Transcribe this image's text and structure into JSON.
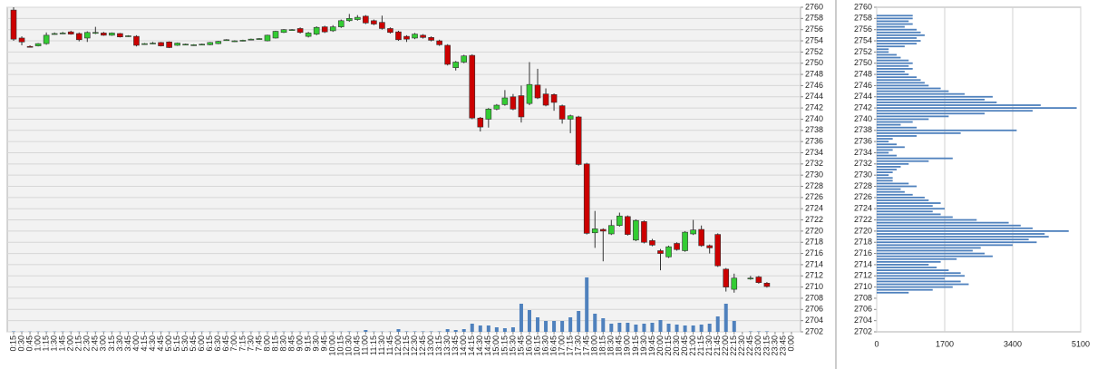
{
  "chart_data": [
    {
      "type": "candlestick",
      "categories": [
        "0:15",
        "0:30",
        "0:45",
        "1:00",
        "1:15",
        "1:30",
        "1:45",
        "2:00",
        "2:15",
        "2:30",
        "2:45",
        "3:00",
        "3:15",
        "3:30",
        "3:45",
        "4:00",
        "4:15",
        "4:30",
        "4:45",
        "5:00",
        "5:15",
        "5:30",
        "5:45",
        "6:00",
        "6:15",
        "6:30",
        "6:45",
        "7:00",
        "7:15",
        "7:30",
        "7:45",
        "8:00",
        "8:15",
        "8:30",
        "8:45",
        "9:00",
        "9:15",
        "9:30",
        "9:45",
        "10:00",
        "10:15",
        "10:30",
        "10:45",
        "11:00",
        "11:15",
        "11:30",
        "11:45",
        "12:00",
        "12:15",
        "12:30",
        "12:45",
        "13:00",
        "13:15",
        "13:30",
        "13:45",
        "14:00",
        "14:15",
        "14:30",
        "14:45",
        "15:00",
        "15:15",
        "15:30",
        "15:45",
        "16:00",
        "16:15",
        "16:30",
        "16:45",
        "17:00",
        "17:15",
        "17:30",
        "17:45",
        "18:00",
        "18:15",
        "18:30",
        "18:45",
        "19:00",
        "19:15",
        "19:30",
        "19:45",
        "20:00",
        "20:15",
        "20:30",
        "20:45",
        "21:00",
        "21:15",
        "21:30",
        "21:45",
        "22:00",
        "22:15",
        "22:30",
        "22:45",
        "23:00",
        "23:15",
        "23:30",
        "23:45",
        "0:00"
      ],
      "open": [
        2759.5,
        2754.5,
        2753,
        2753.1,
        2753.5,
        2755.2,
        2755.3,
        2755.6,
        2755.3,
        2754.5,
        2755.4,
        2755.4,
        2755,
        2755.3,
        2754.8,
        2754.8,
        2753.4,
        2753.5,
        2753.7,
        2753.8,
        2753.2,
        2753.3,
        2753.2,
        2753.3,
        2753.3,
        2753.5,
        2754.1,
        2753.9,
        2754,
        2754.2,
        2754.3,
        2754,
        2754.5,
        2755.5,
        2755.9,
        2756.2,
        2754.8,
        2755.2,
        2756.5,
        2755.8,
        2756.5,
        2757.6,
        2757.8,
        2758.4,
        2757.6,
        2757.3,
        2756.2,
        2755.6,
        2754.8,
        2754.5,
        2755,
        2754.6,
        2754,
        2753.2,
        2749.2,
        2750.2,
        2751.4,
        2740.2,
        2740,
        2741.8,
        2742.6,
        2744,
        2744.2,
        2742.8,
        2746.1,
        2744.5,
        2744.4,
        2742.4,
        2740,
        2740.4,
        2732,
        2719.7,
        2720.3,
        2719.5,
        2721,
        2722.6,
        2718.4,
        2721.7,
        2718.3,
        2716.5,
        2715.4,
        2717.8,
        2716.5,
        2719.5,
        2720.3,
        2717.4,
        2719.4,
        2713.2,
        2709.6,
        null,
        2711.5,
        2711.8,
        2710.7,
        null,
        null,
        null
      ],
      "high": [
        2760,
        2754.8,
        2753.2,
        2753.6,
        2755.5,
        2755.5,
        2755.6,
        2755.8,
        2755.5,
        2755.7,
        2756.5,
        2755.6,
        2755.5,
        2755.4,
        2755,
        2755,
        2753.6,
        2753.8,
        2753.8,
        2753.9,
        2753.7,
        2753.5,
        2753.4,
        2753.5,
        2753.8,
        2754,
        2754.3,
        2754.1,
        2754.2,
        2754.4,
        2754.5,
        2755.1,
        2755.8,
        2756.1,
        2756.1,
        2756.4,
        2755.6,
        2756.6,
        2756.7,
        2756.8,
        2757.8,
        2758.8,
        2758.6,
        2758.6,
        2757.8,
        2758.5,
        2756.4,
        2755.8,
        2755,
        2755.4,
        2755.2,
        2754.8,
        2754.2,
        2753.4,
        2750.4,
        2751.5,
        2751.6,
        2740.4,
        2742,
        2742.7,
        2745.2,
        2744.5,
        2746,
        2750.2,
        2749,
        2745.5,
        2744.6,
        2742.6,
        2740.8,
        2740.6,
        2732.2,
        2723.6,
        2720.5,
        2722,
        2723.3,
        2722.8,
        2722.1,
        2721.9,
        2718.6,
        2716.8,
        2717.4,
        2718,
        2720,
        2722,
        2721,
        2717.6,
        2719.6,
        2713.4,
        2712.4,
        null,
        2712,
        2712,
        2710.9,
        null,
        null,
        null
      ],
      "low": [
        2754,
        2753.2,
        2752.8,
        2753,
        2753.3,
        2755.1,
        2755.2,
        2755.1,
        2753.9,
        2753.8,
        2755.2,
        2754.9,
        2754.9,
        2754.6,
        2754.7,
        2753,
        2753.3,
        2753.4,
        2753,
        2752.7,
        2753.1,
        2753.2,
        2753.1,
        2753.2,
        2753.2,
        2753.4,
        2754,
        2753.8,
        2753.9,
        2754.1,
        2754.2,
        2753.9,
        2754.4,
        2755.4,
        2755.8,
        2755.3,
        2754.6,
        2755,
        2755.4,
        2755.6,
        2756.3,
        2757.4,
        2757.6,
        2757,
        2756.8,
        2756,
        2755.3,
        2754,
        2753.8,
        2754.3,
        2754.4,
        2753.9,
        2753.1,
        2749.6,
        2748.7,
        2750,
        2740,
        2737.8,
        2738.5,
        2741.6,
        2742.4,
        2741.6,
        2739.4,
        2742.5,
        2743.6,
        2742.3,
        2741.5,
        2739.2,
        2737.5,
        2731.7,
        2719.4,
        2717,
        2714.6,
        2719.3,
        2720.8,
        2719.2,
        2718.2,
        2717.8,
        2717.3,
        2713,
        2715.2,
        2716.5,
        2716.3,
        2719.3,
        2717.2,
        2716,
        2713.6,
        2709.2,
        2709,
        null,
        2711.3,
        2710.6,
        2709.9,
        null,
        null,
        null
      ],
      "close": [
        2754.3,
        2753.8,
        2753,
        2753.5,
        2755,
        2755.3,
        2755.4,
        2755.2,
        2754.2,
        2755.5,
        2755.5,
        2755,
        2755.4,
        2754.7,
        2754.9,
        2753.2,
        2753.5,
        2753.6,
        2753.1,
        2752.8,
        2753.6,
        2753.4,
        2753.3,
        2753.4,
        2753.7,
        2753.9,
        2754.2,
        2754,
        2754.1,
        2754.3,
        2754.4,
        2755,
        2755.7,
        2756,
        2756,
        2755.5,
        2755.4,
        2756.4,
        2755.6,
        2756.5,
        2757.6,
        2758,
        2758.2,
        2757.2,
        2757,
        2756.2,
        2755.5,
        2754.2,
        2754.3,
        2755.2,
        2754.6,
        2754.1,
        2753.3,
        2749.8,
        2750.2,
        2751.3,
        2740.2,
        2738.6,
        2741.8,
        2742.5,
        2743.8,
        2741.8,
        2740.4,
        2746.2,
        2743.8,
        2742.5,
        2743,
        2740,
        2740.6,
        2731.9,
        2719.6,
        2720.4,
        2720,
        2721,
        2722.7,
        2719.4,
        2721.9,
        2718,
        2717.5,
        2716,
        2717.2,
        2716.7,
        2719.8,
        2720.2,
        2717.4,
        2717,
        2713.8,
        2710,
        2711.6,
        null,
        2711.6,
        2710.8,
        2710.1,
        null,
        null,
        null
      ],
      "volume": [
        0.5,
        0.3,
        0.3,
        0.3,
        0.3,
        0.3,
        0.3,
        0.3,
        0.3,
        0.3,
        0.3,
        0.3,
        0.3,
        0.3,
        0.3,
        0.3,
        0.3,
        0.3,
        0.3,
        0.3,
        0.3,
        0.3,
        0.3,
        0.3,
        0.3,
        0.3,
        0.3,
        0.3,
        0.3,
        0.3,
        0.3,
        0.3,
        0.3,
        0.3,
        0.3,
        0.3,
        0.3,
        0.3,
        0.3,
        0.3,
        0.3,
        0.5,
        0.3,
        2,
        0.3,
        0.3,
        0.3,
        3,
        0.5,
        0.5,
        0.5,
        0.5,
        0.5,
        3,
        2,
        3,
        9,
        7,
        7,
        5,
        4,
        5,
        31,
        24,
        16,
        12,
        12,
        12,
        16,
        23,
        60,
        20,
        15,
        9,
        10,
        10,
        8,
        9,
        10,
        13,
        9,
        8,
        7,
        7,
        8,
        9,
        17,
        31,
        12,
        null,
        0.5,
        0.5,
        0.5,
        null,
        null,
        null
      ],
      "ylim": [
        2702,
        2760
      ],
      "yticks": [
        2702,
        2704,
        2706,
        2708,
        2710,
        2712,
        2714,
        2716,
        2718,
        2720,
        2722,
        2724,
        2726,
        2728,
        2730,
        2732,
        2734,
        2736,
        2738,
        2740,
        2742,
        2744,
        2746,
        2748,
        2750,
        2752,
        2754,
        2756,
        2758,
        2760
      ],
      "up_color": "#33cc33",
      "down_color": "#cc0000",
      "volume_color": "#4f81bd",
      "grid": true
    },
    {
      "type": "barh",
      "prices": [
        2758.5,
        2758,
        2757.5,
        2757,
        2756.5,
        2756,
        2755.5,
        2755,
        2754.5,
        2754,
        2753.5,
        2753,
        2752.5,
        2752,
        2751.5,
        2751,
        2750.5,
        2750,
        2749.5,
        2749,
        2748.5,
        2748,
        2747.5,
        2747,
        2746.5,
        2746,
        2745.5,
        2745,
        2744.5,
        2744,
        2743.5,
        2743,
        2742.5,
        2742,
        2741.5,
        2741,
        2740.5,
        2740,
        2739.5,
        2739,
        2738.5,
        2738,
        2737.5,
        2737,
        2736.5,
        2736,
        2735.5,
        2735,
        2734.5,
        2734,
        2733.5,
        2733,
        2732.5,
        2732,
        2731.5,
        2731,
        2730.5,
        2730,
        2729.5,
        2729,
        2728.5,
        2728,
        2727.5,
        2727,
        2726.5,
        2726,
        2725.5,
        2725,
        2724.5,
        2724,
        2723.5,
        2723,
        2722.5,
        2722,
        2721.5,
        2721,
        2720.5,
        2720,
        2719.5,
        2719,
        2718.5,
        2718,
        2717.5,
        2717,
        2716.5,
        2716,
        2715.5,
        2715,
        2714.5,
        2714,
        2713.5,
        2713,
        2712.5,
        2712,
        2711.5,
        2711,
        2710.5,
        2710,
        2709.5,
        2709
      ],
      "values": [
        900,
        900,
        800,
        900,
        700,
        1000,
        1100,
        1200,
        1000,
        1100,
        1000,
        700,
        300,
        300,
        500,
        600,
        800,
        900,
        800,
        900,
        700,
        800,
        1000,
        1100,
        1200,
        1300,
        1600,
        1800,
        2200,
        2900,
        2700,
        3000,
        4100,
        5000,
        3900,
        2700,
        1800,
        1300,
        900,
        600,
        1000,
        3500,
        2100,
        1000,
        400,
        300,
        500,
        700,
        400,
        300,
        500,
        1900,
        1300,
        800,
        600,
        500,
        400,
        300,
        400,
        400,
        800,
        1000,
        600,
        700,
        900,
        1200,
        1300,
        1600,
        1400,
        1700,
        1400,
        1600,
        1900,
        2500,
        3300,
        3600,
        3900,
        4800,
        4200,
        4300,
        3800,
        4000,
        3400,
        2600,
        2400,
        2700,
        2900,
        2000,
        1600,
        1300,
        1500,
        1800,
        2100,
        2200,
        1700,
        2100,
        2300,
        1900,
        1400,
        800
      ],
      "xlim": [
        0,
        5100
      ],
      "xticks": [
        0,
        1700,
        3400,
        5100
      ],
      "ylim": [
        2702,
        2760
      ],
      "yticks": [
        2702,
        2704,
        2706,
        2708,
        2710,
        2712,
        2714,
        2716,
        2718,
        2720,
        2722,
        2724,
        2726,
        2728,
        2730,
        2732,
        2734,
        2736,
        2738,
        2740,
        2742,
        2744,
        2746,
        2748,
        2750,
        2752,
        2754,
        2756,
        2758,
        2760
      ],
      "color": "#4f81bd",
      "grid": true
    }
  ]
}
